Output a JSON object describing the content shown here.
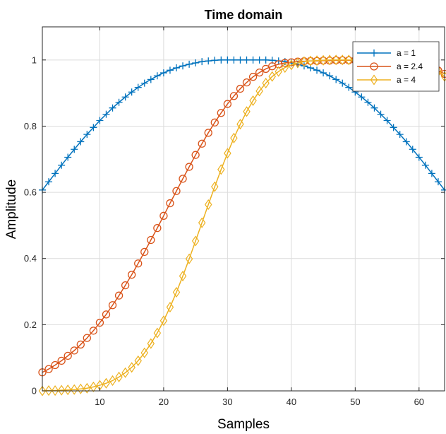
{
  "chart_data": {
    "type": "line",
    "title": "Time domain",
    "xlabel": "Samples",
    "ylabel": "Amplitude",
    "xlim": [
      1,
      64
    ],
    "ylim": [
      0,
      1.1
    ],
    "xticks": [
      10,
      20,
      30,
      40,
      50,
      60
    ],
    "xtick_labels": [
      "10",
      "20",
      "30",
      "40",
      "50",
      "60"
    ],
    "yticks": [
      0,
      0.2,
      0.4,
      0.6,
      0.8,
      1
    ],
    "ytick_labels": [
      "0",
      "0.2",
      "0.4",
      "0.6",
      "0.8",
      "1"
    ],
    "grid": true,
    "legend_position": "top-right",
    "x": [
      1,
      2,
      3,
      4,
      5,
      6,
      7,
      8,
      9,
      10,
      11,
      12,
      13,
      14,
      15,
      16,
      17,
      18,
      19,
      20,
      21,
      22,
      23,
      24,
      25,
      26,
      27,
      28,
      29,
      30,
      31,
      32,
      33,
      34,
      35,
      36,
      37,
      38,
      39,
      40,
      41,
      42,
      43,
      44,
      45,
      46,
      47,
      48,
      49,
      50,
      51,
      52,
      53,
      54,
      55,
      56,
      57,
      58,
      59,
      60,
      61,
      62,
      63,
      64
    ],
    "series": [
      {
        "name": "a = 1",
        "color": "#0072BD",
        "marker": "plus",
        "values": [
          0.607,
          0.632,
          0.657,
          0.682,
          0.706,
          0.73,
          0.753,
          0.775,
          0.796,
          0.817,
          0.836,
          0.855,
          0.872,
          0.888,
          0.903,
          0.917,
          0.93,
          0.941,
          0.952,
          0.961,
          0.969,
          0.976,
          0.982,
          0.987,
          0.991,
          0.995,
          0.997,
          0.999,
          1.0,
          1.0,
          1.0,
          1.0,
          1.0,
          1.0,
          1.0,
          1.0,
          0.999,
          0.997,
          0.995,
          0.991,
          0.987,
          0.982,
          0.976,
          0.969,
          0.961,
          0.952,
          0.941,
          0.93,
          0.917,
          0.903,
          0.888,
          0.872,
          0.855,
          0.836,
          0.817,
          0.796,
          0.775,
          0.753,
          0.73,
          0.706,
          0.682,
          0.657,
          0.632,
          0.607
        ]
      },
      {
        "name": "a = 2.4",
        "color": "#D95319",
        "marker": "circle",
        "values": [
          0.056,
          0.066,
          0.078,
          0.091,
          0.106,
          0.122,
          0.14,
          0.16,
          0.182,
          0.206,
          0.231,
          0.259,
          0.288,
          0.319,
          0.351,
          0.385,
          0.42,
          0.456,
          0.492,
          0.529,
          0.567,
          0.604,
          0.641,
          0.677,
          0.713,
          0.747,
          0.78,
          0.811,
          0.84,
          0.867,
          0.891,
          0.913,
          0.932,
          0.949,
          0.962,
          0.973,
          0.981,
          0.987,
          0.991,
          0.993,
          0.995,
          0.996,
          0.997,
          0.997,
          0.998,
          0.998,
          0.999,
          0.999,
          0.999,
          0.999,
          0.999,
          1.0,
          1.0,
          0.999,
          0.999,
          0.998,
          0.997,
          0.995,
          0.992,
          0.988,
          0.983,
          0.977,
          0.968,
          0.958
        ]
      },
      {
        "name": "a = 4",
        "color": "#EDB120",
        "marker": "diamond",
        "values": [
          0.0,
          0.001,
          0.001,
          0.002,
          0.003,
          0.004,
          0.006,
          0.008,
          0.012,
          0.017,
          0.023,
          0.031,
          0.042,
          0.055,
          0.071,
          0.091,
          0.115,
          0.143,
          0.175,
          0.212,
          0.253,
          0.298,
          0.347,
          0.399,
          0.453,
          0.508,
          0.563,
          0.617,
          0.669,
          0.718,
          0.764,
          0.806,
          0.844,
          0.877,
          0.906,
          0.93,
          0.95,
          0.965,
          0.977,
          0.985,
          0.991,
          0.995,
          0.997,
          0.998,
          0.999,
          1.0,
          1.0,
          1.0,
          1.0,
          1.0,
          1.0,
          1.0,
          1.0,
          1.0,
          0.999,
          0.999,
          0.998,
          0.996,
          0.994,
          0.99,
          0.984,
          0.976,
          0.965,
          0.95
        ]
      }
    ]
  }
}
